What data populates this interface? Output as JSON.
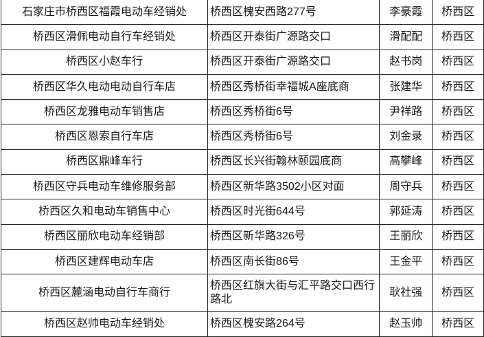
{
  "rows": [
    {
      "name": "石家庄市桥西区福霞电动车经销处",
      "address": "桥西区槐安西路277号",
      "contact": "李豪霞",
      "district": "桥西区"
    },
    {
      "name": "桥西区滑佩电动自行车经销处",
      "address": "桥西区开泰街广源路交口",
      "contact": "滑配配",
      "district": "桥西区"
    },
    {
      "name": "桥西区小赵车行",
      "address": "桥西区开泰街广源路交口",
      "contact": "赵书岗",
      "district": "桥西区"
    },
    {
      "name": "桥西区华久电动电动自行车店",
      "address": "桥西区秀桥街幸福城A座底商",
      "contact": "张建华",
      "district": "桥西区"
    },
    {
      "name": "桥西区龙雅电动车销售店",
      "address": "桥西区秀桥街6号",
      "contact": "尹祥路",
      "district": "桥西区"
    },
    {
      "name": "桥西区恩索自行车店",
      "address": "桥西区秀桥街6号",
      "contact": "刘金录",
      "district": "桥西区"
    },
    {
      "name": "桥西区鼎峰车行",
      "address": "桥西区长兴街翰林颐园底商",
      "contact": "高攀峰",
      "district": "桥西区"
    },
    {
      "name": "桥西区守兵电动车维修服务部",
      "address": "桥西区新华路3502小区对面",
      "contact": "周守兵",
      "district": "桥西区"
    },
    {
      "name": "桥西区久和电动车销售中心",
      "address": "桥西区时光街644号",
      "contact": "郭延涛",
      "district": "桥西区"
    },
    {
      "name": "桥西区丽欣电动车经销部",
      "address": "桥西区新华路326号",
      "contact": "王丽欣",
      "district": "桥西区"
    },
    {
      "name": "桥西区建辉电动车店",
      "address": "桥西区南长街86号",
      "contact": "王金平",
      "district": "桥西区"
    },
    {
      "name": "桥西区麓涵电动自行车商行",
      "address": "桥西区红旗大街与汇平路交口西行路北",
      "contact": "耿社强",
      "district": "桥西区"
    },
    {
      "name": "桥西区赵帅电动车经销处",
      "address": "桥西区槐安路264号",
      "contact": "赵玉帅",
      "district": "桥西区"
    }
  ]
}
